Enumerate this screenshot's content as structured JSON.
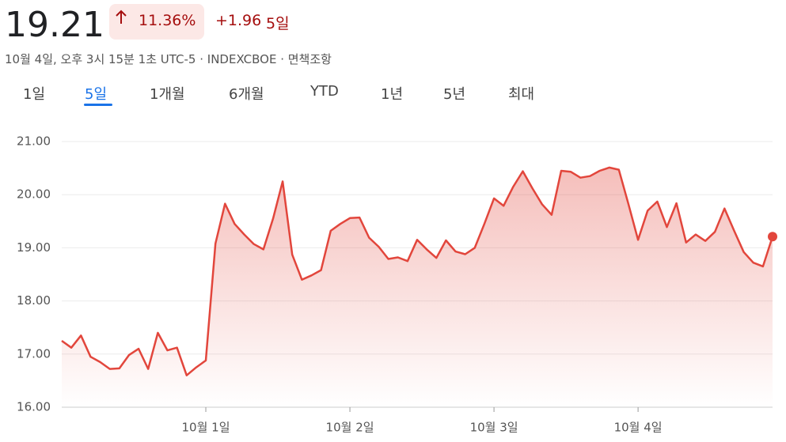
{
  "header": {
    "price": "19.21",
    "change_percent": "11.36%",
    "change": "+1.96",
    "period": "5일",
    "subtitle": "10월 4일, 오후 3시 15분 1초 UTC-5 · INDEXCBOE · 면책조항"
  },
  "tabs": {
    "items": [
      "1일",
      "5일",
      "1개월",
      "6개월",
      "YTD",
      "1년",
      "5년",
      "최대"
    ],
    "selected": 1
  },
  "chart_data": {
    "type": "line",
    "color": "#e2463c",
    "values": [
      17.25,
      17.12,
      17.35,
      16.95,
      16.85,
      16.72,
      16.73,
      16.98,
      17.1,
      16.72,
      17.4,
      17.07,
      17.12,
      16.6,
      16.75,
      16.88,
      19.08,
      19.83,
      19.45,
      19.25,
      19.07,
      18.97,
      19.55,
      20.25,
      18.87,
      18.4,
      18.48,
      18.58,
      19.32,
      19.45,
      19.56,
      19.57,
      19.19,
      19.02,
      18.79,
      18.82,
      18.75,
      19.15,
      18.97,
      18.81,
      19.14,
      18.93,
      18.88,
      19.0,
      19.45,
      19.93,
      19.79,
      20.15,
      20.44,
      20.12,
      19.82,
      19.62,
      20.45,
      20.43,
      20.32,
      20.35,
      20.45,
      20.51,
      20.47,
      19.82,
      19.15,
      19.7,
      19.87,
      19.39,
      19.84,
      19.1,
      19.25,
      19.13,
      19.3,
      19.74,
      19.32,
      18.92,
      18.72,
      18.65,
      19.21
    ],
    "xlim": [
      0,
      74
    ],
    "xticks": [
      {
        "value": 15,
        "label": "10월 1일"
      },
      {
        "value": 30,
        "label": "10월 2일"
      },
      {
        "value": 45,
        "label": "10월 3일"
      },
      {
        "value": 60,
        "label": "10월 4일"
      }
    ],
    "ylim": [
      16,
      21
    ],
    "yticks": [
      {
        "value": 16,
        "label": "16.00"
      },
      {
        "value": 17,
        "label": "17.00"
      },
      {
        "value": 18,
        "label": "18.00"
      },
      {
        "value": 19,
        "label": "19.00"
      },
      {
        "value": 20,
        "label": "20.00"
      },
      {
        "value": 21,
        "label": "21.00"
      }
    ],
    "grid": true
  }
}
